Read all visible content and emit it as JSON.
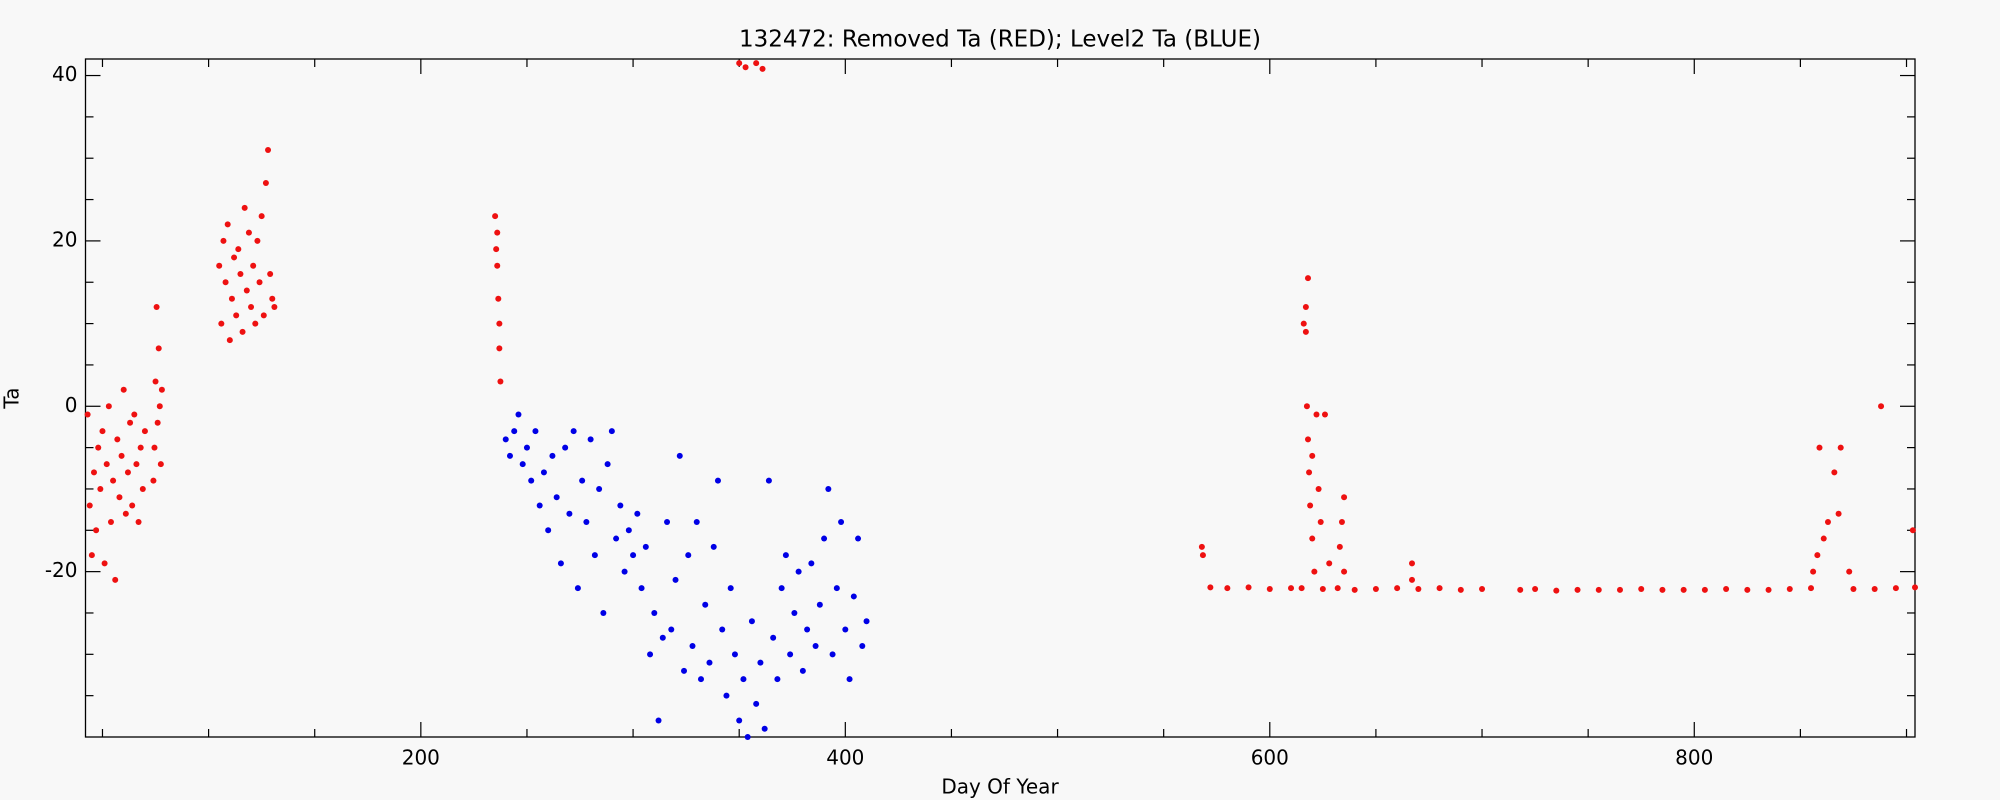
{
  "chart_data": {
    "type": "scatter",
    "title": "132472: Removed Ta (RED); Level2 Ta (BLUE)",
    "x_label": "Day Of Year",
    "y_label": "Ta",
    "xlim": [
      42,
      904
    ],
    "ylim": [
      -40,
      42
    ],
    "xticks": [
      200,
      400,
      600,
      800
    ],
    "yticks": [
      -20,
      0,
      20,
      40
    ],
    "xminorticks": [
      50,
      100,
      150,
      250,
      300,
      350,
      450,
      500,
      550,
      650,
      700,
      750,
      850,
      900
    ],
    "yminorticks": [
      -35,
      -30,
      -25,
      -15,
      -10,
      -5,
      5,
      10,
      15,
      25,
      30,
      35
    ],
    "grid": false,
    "series": [
      {
        "color": "#ee1111",
        "x": [
          43,
          44,
          45,
          46,
          47,
          48,
          49,
          50,
          51,
          52,
          53,
          54,
          55,
          56,
          57,
          58,
          59,
          60,
          61,
          62,
          63,
          64,
          65,
          66,
          67,
          68,
          69,
          70,
          74,
          74.5,
          75,
          75.5,
          76,
          76.5,
          77,
          77.5,
          78,
          105,
          106,
          107,
          108,
          109,
          110,
          111,
          112,
          113,
          114,
          115,
          116,
          117,
          118,
          119,
          120,
          121,
          122,
          123,
          124,
          125,
          126,
          127,
          128,
          129,
          130,
          131,
          235,
          235.5,
          236,
          236,
          236.5,
          237,
          237,
          237.5,
          350,
          353,
          358,
          361,
          568,
          568.5,
          572,
          580,
          590,
          600,
          610,
          615,
          625,
          632,
          640,
          650,
          660,
          670,
          680,
          690,
          700,
          718,
          725,
          735,
          745,
          755,
          765,
          775,
          785,
          795,
          805,
          815,
          825,
          835,
          845,
          855,
          875,
          885,
          895,
          904,
          616,
          617,
          617.5,
          618,
          618.5,
          619,
          620,
          620,
          621,
          622,
          623,
          624,
          626,
          628,
          633,
          634,
          635,
          635,
          618,
          617,
          667,
          667,
          856,
          858,
          859,
          861,
          863,
          866,
          868,
          869,
          873,
          888,
          903
        ],
        "values": [
          -1,
          -12,
          -18,
          -8,
          -15,
          -5,
          -10,
          -3,
          -19,
          -7,
          0,
          -14,
          -9,
          -21,
          -4,
          -11,
          -6,
          2,
          -13,
          -8,
          -2,
          -12,
          -1,
          -7,
          -14,
          -5,
          -10,
          -3,
          -9,
          -5,
          3,
          12,
          -2,
          7,
          0,
          -7,
          2,
          17,
          10,
          20,
          15,
          22,
          8,
          13,
          18,
          11,
          19,
          16,
          9,
          24,
          14,
          21,
          12,
          17,
          10,
          20,
          15,
          23,
          11,
          27,
          31,
          16,
          13,
          12,
          23,
          19,
          17,
          21,
          13,
          10,
          7,
          3,
          41.5,
          41,
          41.5,
          40.8,
          -17,
          -18,
          -21.9,
          -22,
          -21.9,
          -22.1,
          -22,
          -22,
          -22.1,
          -22,
          -22.2,
          -22.1,
          -22,
          -22.1,
          -22,
          -22.2,
          -22.1,
          -22.2,
          -22.1,
          -22.3,
          -22.2,
          -22.2,
          -22.2,
          -22.1,
          -22.2,
          -22.2,
          -22.2,
          -22.1,
          -22.2,
          -22.2,
          -22.1,
          -22,
          -22.1,
          -22.1,
          -22,
          -21.9,
          10,
          12,
          0,
          -4,
          -8,
          -12,
          -16,
          -6,
          -20,
          -1,
          -10,
          -14,
          -1,
          -19,
          -17,
          -14,
          -11,
          -20,
          15.5,
          9,
          -19,
          -21,
          -20,
          -18,
          -5,
          -16,
          -14,
          -8,
          -13,
          -5,
          -20,
          0,
          -15
        ]
      },
      {
        "color": "#0000e6",
        "x": [
          240,
          242,
          244,
          246,
          248,
          250,
          252,
          254,
          256,
          258,
          260,
          262,
          264,
          266,
          268,
          270,
          272,
          274,
          276,
          278,
          280,
          282,
          284,
          286,
          288,
          290,
          292,
          294,
          296,
          298,
          300,
          302,
          304,
          306,
          308,
          310,
          312,
          314,
          316,
          318,
          320,
          322,
          324,
          326,
          328,
          330,
          332,
          334,
          336,
          338,
          340,
          342,
          344,
          346,
          348,
          350,
          352,
          354,
          356,
          358,
          360,
          362,
          364,
          366,
          368,
          370,
          372,
          374,
          376,
          378,
          380,
          382,
          384,
          386,
          388,
          390,
          392,
          394,
          396,
          398,
          400,
          402,
          404,
          406,
          408,
          410
        ],
        "values": [
          -4,
          -6,
          -3,
          -1,
          -7,
          -5,
          -9,
          -3,
          -12,
          -8,
          -15,
          -6,
          -11,
          -19,
          -5,
          -13,
          -3,
          -22,
          -9,
          -14,
          -4,
          -18,
          -10,
          -25,
          -7,
          -3,
          -16,
          -12,
          -20,
          -15,
          -18,
          -13,
          -22,
          -17,
          -30,
          -25,
          -38,
          -28,
          -14,
          -27,
          -21,
          -6,
          -32,
          -18,
          -29,
          -14,
          -33,
          -24,
          -31,
          -17,
          -9,
          -27,
          -35,
          -22,
          -30,
          -38,
          -33,
          -40,
          -26,
          -36,
          -31,
          -39,
          -9,
          -28,
          -33,
          -22,
          -18,
          -30,
          -25,
          -20,
          -32,
          -27,
          -19,
          -29,
          -24,
          -16,
          -10,
          -30,
          -22,
          -14,
          -27,
          -33,
          -23,
          -16,
          -29,
          -26
        ]
      }
    ]
  }
}
